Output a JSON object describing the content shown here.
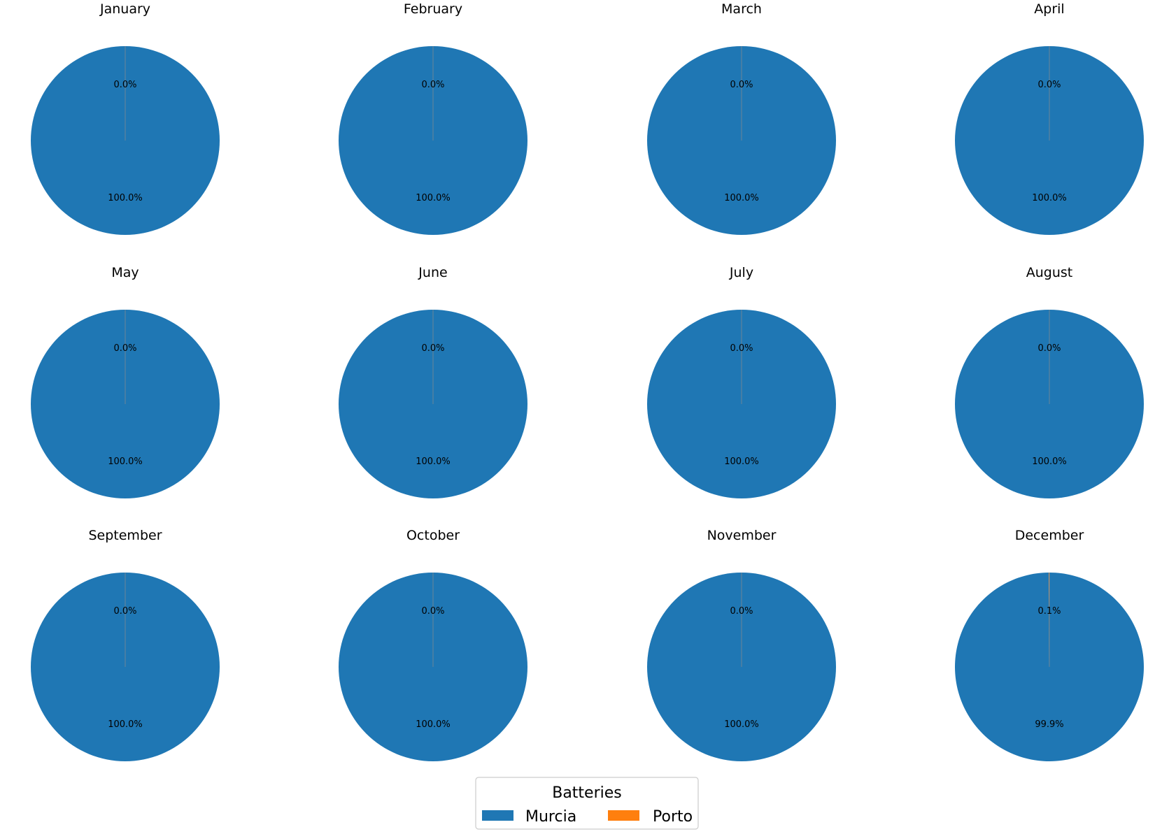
{
  "chart_data": {
    "type": "pie",
    "series_names": [
      "Murcia",
      "Porto"
    ],
    "colors": {
      "Murcia": "#1f77b4",
      "Porto": "#ff7f0e"
    },
    "charts": [
      {
        "title": "January",
        "values": [
          100.0,
          0.0
        ],
        "labels": [
          "100.0%",
          "0.0%"
        ]
      },
      {
        "title": "February",
        "values": [
          100.0,
          0.0
        ],
        "labels": [
          "100.0%",
          "0.0%"
        ]
      },
      {
        "title": "March",
        "values": [
          100.0,
          0.0
        ],
        "labels": [
          "100.0%",
          "0.0%"
        ]
      },
      {
        "title": "April",
        "values": [
          100.0,
          0.0
        ],
        "labels": [
          "100.0%",
          "0.0%"
        ]
      },
      {
        "title": "May",
        "values": [
          100.0,
          0.0
        ],
        "labels": [
          "100.0%",
          "0.0%"
        ]
      },
      {
        "title": "June",
        "values": [
          100.0,
          0.0
        ],
        "labels": [
          "100.0%",
          "0.0%"
        ]
      },
      {
        "title": "July",
        "values": [
          100.0,
          0.0
        ],
        "labels": [
          "100.0%",
          "0.0%"
        ]
      },
      {
        "title": "August",
        "values": [
          100.0,
          0.0
        ],
        "labels": [
          "100.0%",
          "0.0%"
        ]
      },
      {
        "title": "September",
        "values": [
          100.0,
          0.0
        ],
        "labels": [
          "100.0%",
          "0.0%"
        ]
      },
      {
        "title": "October",
        "values": [
          100.0,
          0.0
        ],
        "labels": [
          "100.0%",
          "0.0%"
        ]
      },
      {
        "title": "November",
        "values": [
          100.0,
          0.0
        ],
        "labels": [
          "100.0%",
          "0.0%"
        ]
      },
      {
        "title": "December",
        "values": [
          99.9,
          0.1
        ],
        "labels": [
          "99.9%",
          "0.1%"
        ]
      }
    ],
    "legend": {
      "title": "Batteries",
      "entries": [
        "Murcia",
        "Porto"
      ],
      "placement": "bottom-center"
    }
  }
}
